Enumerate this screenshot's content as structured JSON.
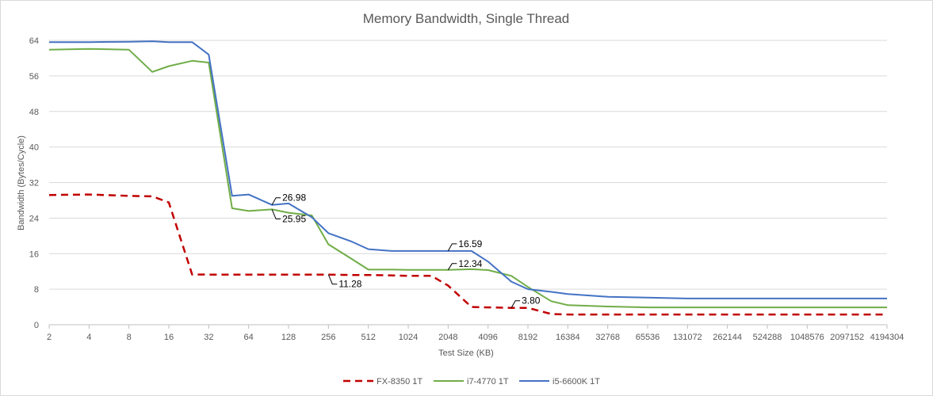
{
  "chart_data": {
    "type": "line",
    "title": "Memory Bandwidth, Single Thread",
    "xlabel": "Test Size (KB)",
    "ylabel": "Bandwidth (Bytes/Cycle)",
    "x_scale": "log2",
    "ylim": [
      0,
      64
    ],
    "xlim_kb": [
      2,
      4194304
    ],
    "grid": "horizontal",
    "legend_position": "bottom",
    "y_ticks": [
      "0",
      "8",
      "16",
      "24",
      "32",
      "40",
      "48",
      "56",
      "64"
    ],
    "x_ticks": [
      "2",
      "4",
      "8",
      "16",
      "32",
      "64",
      "128",
      "256",
      "512",
      "1024",
      "2048",
      "4096",
      "8192",
      "16384",
      "32768",
      "65536",
      "131072",
      "262144",
      "524288",
      "1048576",
      "2097152",
      "4194304"
    ],
    "series": [
      {
        "name": "FX-8350 1T",
        "color": "#c00000",
        "dash": "dashed",
        "points": [
          [
            2,
            29.2
          ],
          [
            4,
            29.3
          ],
          [
            8,
            29.0
          ],
          [
            12,
            28.9
          ],
          [
            16,
            27.5
          ],
          [
            24,
            11.3
          ],
          [
            32,
            11.28
          ],
          [
            48,
            11.28
          ],
          [
            64,
            11.28
          ],
          [
            96,
            11.28
          ],
          [
            128,
            11.28
          ],
          [
            192,
            11.28
          ],
          [
            256,
            11.28
          ],
          [
            384,
            11.2
          ],
          [
            512,
            11.2
          ],
          [
            768,
            11.1
          ],
          [
            1024,
            11.0
          ],
          [
            1536,
            11.0
          ],
          [
            2048,
            8.8
          ],
          [
            3072,
            4.0
          ],
          [
            4096,
            3.9
          ],
          [
            6144,
            3.8
          ],
          [
            8192,
            3.8
          ],
          [
            12288,
            2.4
          ],
          [
            16384,
            2.3
          ],
          [
            4194304,
            2.3
          ]
        ]
      },
      {
        "name": "i7-4770 1T",
        "color": "#70ad47",
        "dash": "solid",
        "points": [
          [
            2,
            61.9
          ],
          [
            4,
            62.1
          ],
          [
            8,
            61.9
          ],
          [
            12,
            56.9
          ],
          [
            16,
            58.2
          ],
          [
            24,
            59.4
          ],
          [
            32,
            59.0
          ],
          [
            48,
            26.2
          ],
          [
            64,
            25.6
          ],
          [
            96,
            25.95
          ],
          [
            128,
            25.2
          ],
          [
            192,
            24.6
          ],
          [
            256,
            18.1
          ],
          [
            384,
            14.8
          ],
          [
            512,
            12.4
          ],
          [
            768,
            12.4
          ],
          [
            1024,
            12.34
          ],
          [
            1536,
            12.34
          ],
          [
            2048,
            12.34
          ],
          [
            3072,
            12.5
          ],
          [
            4096,
            12.3
          ],
          [
            6144,
            11.0
          ],
          [
            8192,
            8.5
          ],
          [
            12288,
            5.3
          ],
          [
            16384,
            4.4
          ],
          [
            32768,
            4.1
          ],
          [
            65536,
            3.9
          ],
          [
            4194304,
            3.9
          ]
        ]
      },
      {
        "name": "i5-6600K 1T",
        "color": "#4472c4",
        "dash": "solid",
        "points": [
          [
            2,
            63.6
          ],
          [
            4,
            63.6
          ],
          [
            8,
            63.7
          ],
          [
            12,
            63.8
          ],
          [
            16,
            63.6
          ],
          [
            24,
            63.6
          ],
          [
            32,
            60.8
          ],
          [
            48,
            29.0
          ],
          [
            64,
            29.3
          ],
          [
            96,
            26.98
          ],
          [
            128,
            27.3
          ],
          [
            192,
            24.2
          ],
          [
            256,
            20.6
          ],
          [
            384,
            18.7
          ],
          [
            512,
            17.0
          ],
          [
            768,
            16.6
          ],
          [
            1024,
            16.59
          ],
          [
            1536,
            16.59
          ],
          [
            2048,
            16.59
          ],
          [
            3072,
            16.59
          ],
          [
            4096,
            14.2
          ],
          [
            6144,
            9.7
          ],
          [
            8192,
            8.0
          ],
          [
            12288,
            7.4
          ],
          [
            16384,
            6.9
          ],
          [
            32768,
            6.3
          ],
          [
            65536,
            6.1
          ],
          [
            131072,
            5.9
          ],
          [
            4194304,
            5.9
          ]
        ]
      }
    ],
    "annotations": [
      {
        "text": "26.98",
        "series": 2,
        "x": 96,
        "y": 26.98
      },
      {
        "text": "25.95",
        "series": 1,
        "x": 96,
        "y": 25.95
      },
      {
        "text": "11.28",
        "series": 0,
        "x": 256,
        "y": 11.28
      },
      {
        "text": "16.59",
        "series": 2,
        "x": 2048,
        "y": 16.59
      },
      {
        "text": "12.34",
        "series": 1,
        "x": 2048,
        "y": 12.34
      },
      {
        "text": "3.80",
        "series": 0,
        "x": 6144,
        "y": 3.8
      }
    ]
  }
}
